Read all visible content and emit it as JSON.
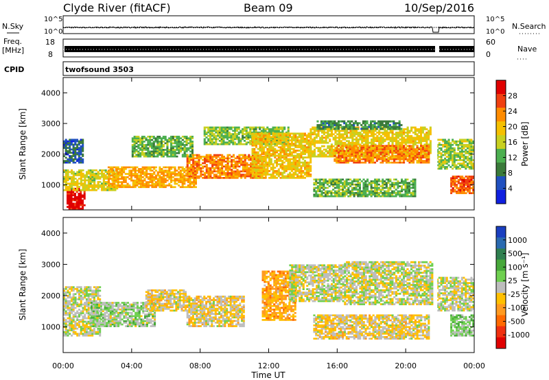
{
  "header": {
    "title": "Clyde River (fitACF)",
    "beam": "Beam 09",
    "date": "10/Sep/2016"
  },
  "strips": {
    "nsky_label": "N.Sky",
    "nsky_ticks": [
      "10^5",
      "10^0"
    ],
    "nsearch_label": "N.Search",
    "freq_label_1": "Freq.",
    "freq_label_2": "[MHz]",
    "freq_ticks": [
      "18",
      "8"
    ],
    "nave_ticks": [
      "60",
      "0"
    ],
    "nave_label": "Nave",
    "cpid_label": "CPID",
    "cpid_value": "twofsound 3503"
  },
  "axes": {
    "x_ticks": [
      "00:00",
      "04:00",
      "08:00",
      "12:00",
      "16:00",
      "20:00",
      "00:00"
    ],
    "x_label": "Time UT",
    "y_label": "Slant Range [km]",
    "y_ticks": [
      "1000",
      "2000",
      "3000",
      "4000"
    ]
  },
  "colorbars": {
    "power": {
      "label": "Power [dB]",
      "ticks": [
        "4",
        "8",
        "12",
        "16",
        "20",
        "24",
        "28"
      ],
      "colors": [
        "#1020e0",
        "#2050c0",
        "#3a7a3a",
        "#4caf50",
        "#c8d020",
        "#f5c000",
        "#ff8c00",
        "#f04010",
        "#e00000"
      ]
    },
    "velocity": {
      "label": "Velocity [m s⁻¹]",
      "ticks": [
        "1000",
        "500",
        "100",
        "25",
        "-25",
        "-100",
        "-500",
        "-1000"
      ],
      "colors": [
        "#1a3fc0",
        "#2a6ab0",
        "#2f7f4f",
        "#47a83a",
        "#6fd050",
        "#bdbdbd",
        "#ffc000",
        "#ff9a20",
        "#ff6a00",
        "#f03010",
        "#e00000"
      ]
    }
  },
  "chart_data": [
    {
      "type": "heatmap",
      "title": "Power",
      "xlabel": "Time UT",
      "ylabel": "Slant Range [km]",
      "xlim": [
        0,
        24
      ],
      "ylim": [
        180,
        4500
      ],
      "colorbar_range": [
        0,
        30
      ],
      "colorbar_units": "dB",
      "regions": [
        {
          "t0": 0.2,
          "t1": 1.3,
          "r0": 200,
          "r1": 900,
          "value": 29
        },
        {
          "t0": 0.0,
          "t1": 3.2,
          "r0": 800,
          "r1": 1500,
          "value": 16
        },
        {
          "t0": 0.0,
          "t1": 1.2,
          "r0": 1700,
          "r1": 2500,
          "value": 6
        },
        {
          "t0": 2.6,
          "t1": 7.8,
          "r0": 900,
          "r1": 1600,
          "value": 20
        },
        {
          "t0": 4.0,
          "t1": 7.6,
          "r0": 1900,
          "r1": 2600,
          "value": 12
        },
        {
          "t0": 7.2,
          "t1": 11.8,
          "r0": 1200,
          "r1": 2000,
          "value": 22
        },
        {
          "t0": 8.2,
          "t1": 13.2,
          "r0": 2300,
          "r1": 2900,
          "value": 13
        },
        {
          "t0": 11.0,
          "t1": 14.5,
          "r0": 1200,
          "r1": 2700,
          "value": 18
        },
        {
          "t0": 14.4,
          "t1": 21.5,
          "r0": 1900,
          "r1": 2900,
          "value": 17
        },
        {
          "t0": 14.8,
          "t1": 19.8,
          "r0": 2800,
          "r1": 3100,
          "value": 9
        },
        {
          "t0": 15.8,
          "t1": 21.4,
          "r0": 1700,
          "r1": 2300,
          "value": 22
        },
        {
          "t0": 14.6,
          "t1": 20.6,
          "r0": 600,
          "r1": 1200,
          "value": 12
        },
        {
          "t0": 21.8,
          "t1": 24.0,
          "r0": 1500,
          "r1": 2500,
          "value": 14
        },
        {
          "t0": 22.6,
          "t1": 24.0,
          "r0": 700,
          "r1": 1300,
          "value": 24
        }
      ]
    },
    {
      "type": "heatmap",
      "title": "Velocity",
      "xlabel": "Time UT",
      "ylabel": "Slant Range [km]",
      "xlim": [
        0,
        24
      ],
      "ylim": [
        180,
        4500
      ],
      "colorbar_range": [
        -1000,
        1000
      ],
      "colorbar_units": "m s-1",
      "regions": [
        {
          "t0": 0.0,
          "t1": 2.2,
          "r0": 700,
          "r1": 2300,
          "value": 0
        },
        {
          "t0": 1.6,
          "t1": 5.4,
          "r0": 1000,
          "r1": 1800,
          "value": 100
        },
        {
          "t0": 4.8,
          "t1": 7.2,
          "r0": 1500,
          "r1": 2200,
          "value": -100
        },
        {
          "t0": 7.2,
          "t1": 10.6,
          "r0": 1000,
          "r1": 2000,
          "value": -100
        },
        {
          "t0": 11.6,
          "t1": 13.6,
          "r0": 1200,
          "r1": 2800,
          "value": -300
        },
        {
          "t0": 13.2,
          "t1": 16.4,
          "r0": 1800,
          "r1": 3000,
          "value": 0
        },
        {
          "t0": 14.6,
          "t1": 21.4,
          "r0": 600,
          "r1": 1400,
          "value": -100
        },
        {
          "t0": 16.4,
          "t1": 21.6,
          "r0": 1700,
          "r1": 3100,
          "value": 0
        },
        {
          "t0": 22.6,
          "t1": 24.0,
          "r0": 700,
          "r1": 1400,
          "value": 150
        },
        {
          "t0": 21.8,
          "t1": 24.0,
          "r0": 1500,
          "r1": 2600,
          "value": 0
        }
      ]
    }
  ]
}
